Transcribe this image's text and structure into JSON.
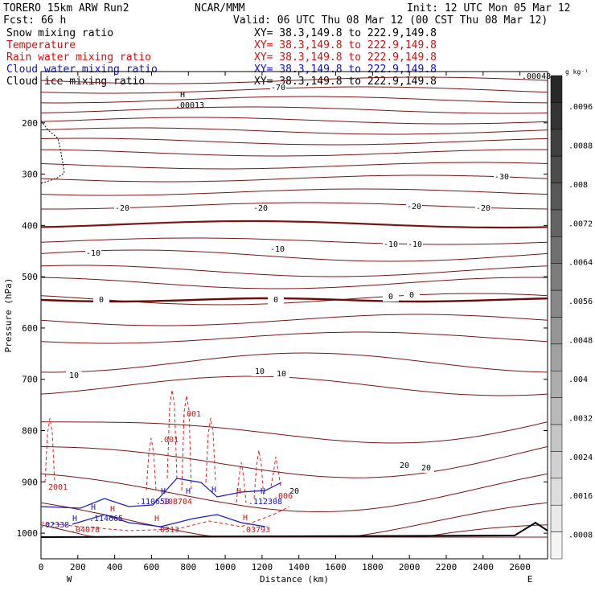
{
  "header": {
    "model": "TORERO  15km ARW   Run2",
    "org": "NCAR/MMM",
    "init": "Init: 12 UTC Mon 05 Mar 12",
    "fcst": "Fcst:   66 h",
    "valid": "Valid: 06 UTC Thu 08 Mar 12 (00 CST Thu 08 Mar 12)"
  },
  "fields": [
    {
      "name": "Snow mixing ratio",
      "xy": "XY=  38.3,149.8 to 222.9,149.8",
      "color": "#000000"
    },
    {
      "name": "Temperature",
      "xy": "XY=  38.3,149.8 to 222.9,149.8",
      "color": "#d01010"
    },
    {
      "name": "Rain water mixing ratio",
      "xy": "XY=  38.3,149.8 to 222.9,149.8",
      "color": "#d01010"
    },
    {
      "name": "Cloud water mixing ratio",
      "xy": "XY=  38.3,149.8 to 222.9,149.8",
      "color": "#1010c8"
    },
    {
      "name": "Cloud ice mixing ratio",
      "xy": "XY=  38.3,149.8 to 222.9,149.8",
      "color": "#000000"
    }
  ],
  "chart_data": {
    "type": "contour",
    "xlabel": "Distance (km)",
    "ylabel": "Pressure (hPa)",
    "xlim": [
      0,
      2750
    ],
    "ylim": [
      1050,
      100
    ],
    "x_ticks": [
      "0",
      "200",
      "400",
      "600",
      "800",
      "1000",
      "1200",
      "1400",
      "1600",
      "1800",
      "2000",
      "2200",
      "2400",
      "2600"
    ],
    "y_ticks": [
      "200",
      "300",
      "400",
      "500",
      "600",
      "700",
      "800",
      "900",
      "1000"
    ],
    "endpoints": {
      "left": "W",
      "right": "E"
    },
    "colorbar": {
      "unit": "g kg⁻¹",
      "labels": [
        ".0096",
        ".0088",
        ".008",
        ".0072",
        ".0064",
        ".0056",
        ".0048",
        ".004",
        ".0032",
        ".0024",
        ".0016",
        ".0008"
      ],
      "top_value": ".00048"
    },
    "temperature_contour_labels": [
      "-70",
      "-30",
      "-20",
      "-20",
      "-20",
      "-20",
      "-10",
      "-10",
      "-10",
      "-10",
      "0",
      "0",
      "0",
      "0",
      "10",
      "10",
      "10",
      "20",
      "20",
      "20"
    ],
    "extremum_label": {
      "marker": "H",
      "value": ".00013"
    },
    "rain_labels": [
      ".001",
      ".001",
      "2001",
      ".04078",
      ".0313",
      ".03793",
      ".108704",
      ".006"
    ],
    "cloud_water_labels": [
      ".02338",
      ".114665",
      ".110650",
      ".112308"
    ],
    "high_markers": [
      "H",
      "H",
      "H",
      "H",
      "H",
      "H",
      "H",
      "H",
      "H",
      "H"
    ]
  }
}
